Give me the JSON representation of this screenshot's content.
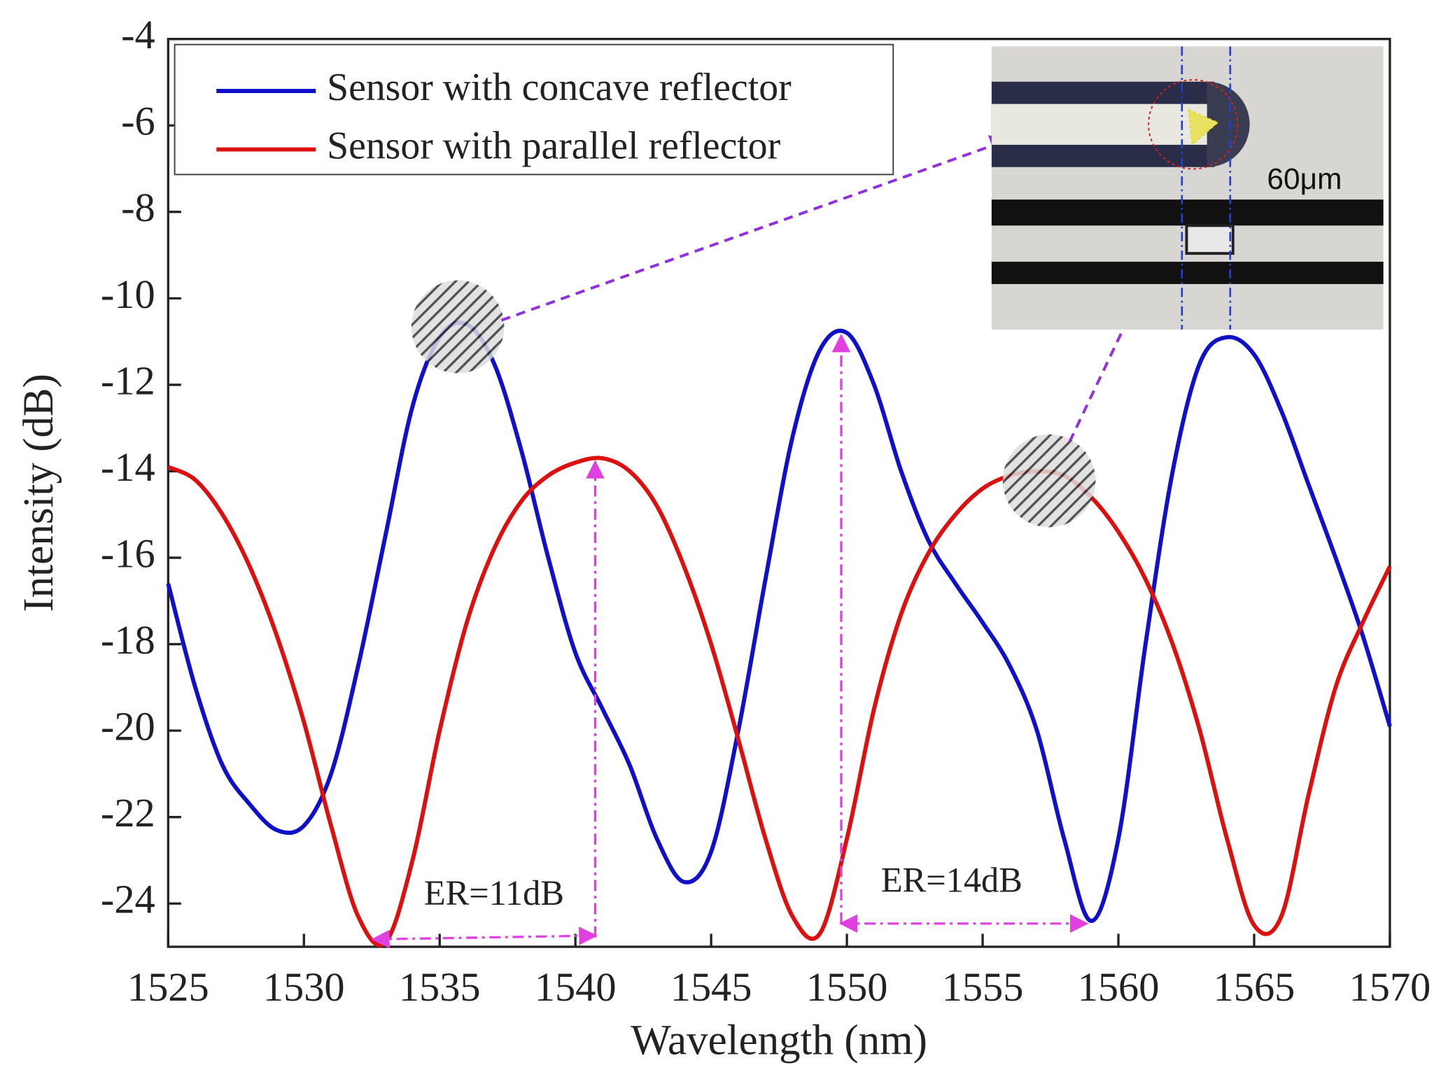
{
  "chart_data": {
    "type": "line",
    "x_label": "Wavelength (nm)",
    "y_label": "Intensity (dB)",
    "x": [
      1525,
      1526,
      1527,
      1528,
      1529,
      1530,
      1531,
      1532,
      1533,
      1534,
      1535,
      1536,
      1537,
      1538,
      1539,
      1540,
      1541,
      1542,
      1543,
      1544,
      1545,
      1546,
      1547,
      1548,
      1549,
      1550,
      1551,
      1552,
      1553,
      1554,
      1555,
      1556,
      1557,
      1558,
      1559,
      1560,
      1561,
      1562,
      1563,
      1564,
      1565,
      1566,
      1567,
      1568,
      1569,
      1570
    ],
    "series": [
      {
        "name": "Sensor with concave reflector",
        "color": "#1010c8",
        "values": [
          -16.6,
          -19.0,
          -20.8,
          -21.7,
          -22.3,
          -22.2,
          -21.0,
          -18.5,
          -15.5,
          -12.5,
          -10.9,
          -10.6,
          -11.5,
          -13.5,
          -16.0,
          -18.2,
          -19.5,
          -20.8,
          -22.5,
          -23.5,
          -22.8,
          -20.0,
          -16.5,
          -13.2,
          -11.2,
          -10.8,
          -12.0,
          -14.0,
          -15.6,
          -16.6,
          -17.5,
          -18.5,
          -20.0,
          -22.5,
          -24.4,
          -22.5,
          -18.0,
          -14.0,
          -11.5,
          -10.9,
          -11.3,
          -12.6,
          -14.3,
          -16.0,
          -17.8,
          -19.9
        ]
      },
      {
        "name": "Sensor with parallel reflector",
        "color": "#dd1010",
        "values": [
          -13.9,
          -14.2,
          -15.0,
          -16.2,
          -17.8,
          -19.8,
          -22.2,
          -24.3,
          -24.9,
          -23.0,
          -20.0,
          -17.5,
          -15.8,
          -14.7,
          -14.1,
          -13.8,
          -13.7,
          -14.0,
          -14.8,
          -16.2,
          -18.0,
          -20.2,
          -22.5,
          -24.3,
          -24.7,
          -22.5,
          -19.5,
          -17.3,
          -15.9,
          -15.0,
          -14.4,
          -14.1,
          -14.0,
          -14.1,
          -14.6,
          -15.4,
          -16.5,
          -18.0,
          -20.0,
          -22.5,
          -24.5,
          -24.3,
          -21.5,
          -19.0,
          -17.5,
          -16.2
        ]
      }
    ],
    "xlim": [
      1525,
      1570
    ],
    "xticks": [
      1525,
      1530,
      1535,
      1540,
      1545,
      1550,
      1555,
      1560,
      1565,
      1570
    ],
    "ylim": [
      -25,
      -4
    ],
    "yticks": [
      -4,
      -6,
      -8,
      -10,
      -12,
      -14,
      -16,
      -18,
      -20,
      -22,
      -24
    ],
    "legend": "upper left",
    "annotations": [
      "ER=11dB",
      "ER=14dB",
      "60μm"
    ]
  }
}
